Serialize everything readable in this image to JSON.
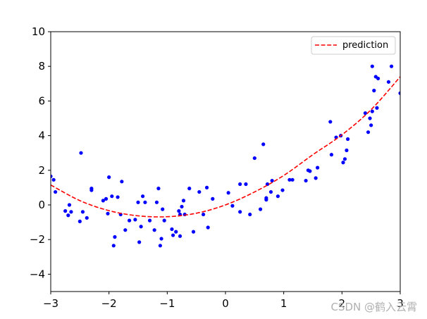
{
  "chart_data": {
    "type": "scatter",
    "xlim": [
      -3,
      3
    ],
    "ylim": [
      -5,
      10
    ],
    "xticks": [
      -3,
      -2,
      -1,
      0,
      1,
      2,
      3
    ],
    "yticks": [
      -4,
      -2,
      0,
      2,
      4,
      6,
      8,
      10
    ],
    "grid": false,
    "legend": {
      "position": "top-right",
      "entries": [
        "prediction"
      ]
    },
    "scatter_color": "#0000ff",
    "line_color": "#ff0000",
    "points": [
      [
        -3.0,
        1.65
      ],
      [
        -2.95,
        1.45
      ],
      [
        -2.92,
        0.75
      ],
      [
        -2.75,
        -0.35
      ],
      [
        -2.7,
        -0.6
      ],
      [
        -2.68,
        0.0
      ],
      [
        -2.65,
        -0.4
      ],
      [
        -2.5,
        -0.95
      ],
      [
        -2.48,
        3.0
      ],
      [
        -2.45,
        -0.4
      ],
      [
        -2.38,
        -0.75
      ],
      [
        -2.3,
        0.85
      ],
      [
        -2.3,
        0.95
      ],
      [
        -2.1,
        0.25
      ],
      [
        -2.05,
        0.35
      ],
      [
        -2.02,
        -0.5
      ],
      [
        -2.0,
        1.6
      ],
      [
        -1.95,
        0.5
      ],
      [
        -1.92,
        -2.35
      ],
      [
        -1.9,
        -1.85
      ],
      [
        -1.85,
        0.45
      ],
      [
        -1.8,
        -0.55
      ],
      [
        -1.78,
        1.35
      ],
      [
        -1.72,
        -1.45
      ],
      [
        -1.65,
        -0.9
      ],
      [
        -1.55,
        -0.85
      ],
      [
        -1.5,
        0.15
      ],
      [
        -1.48,
        -2.15
      ],
      [
        -1.45,
        -1.25
      ],
      [
        -1.42,
        0.5
      ],
      [
        -1.38,
        0.15
      ],
      [
        -1.3,
        -0.9
      ],
      [
        -1.22,
        -1.45
      ],
      [
        -1.18,
        0.15
      ],
      [
        -1.15,
        0.95
      ],
      [
        -1.12,
        -2.35
      ],
      [
        -1.1,
        -1.95
      ],
      [
        -1.08,
        -0.25
      ],
      [
        -1.05,
        -0.9
      ],
      [
        -0.92,
        -1.4
      ],
      [
        -0.9,
        -1.75
      ],
      [
        -0.85,
        -1.55
      ],
      [
        -0.8,
        -0.35
      ],
      [
        -0.78,
        -0.55
      ],
      [
        -0.78,
        -1.8
      ],
      [
        -0.75,
        -0.1
      ],
      [
        -0.72,
        0.25
      ],
      [
        -0.7,
        -0.55
      ],
      [
        -0.62,
        0.95
      ],
      [
        -0.55,
        -1.55
      ],
      [
        -0.45,
        0.75
      ],
      [
        -0.38,
        -0.55
      ],
      [
        -0.32,
        1.0
      ],
      [
        -0.3,
        -1.3
      ],
      [
        -0.22,
        0.35
      ],
      [
        0.05,
        0.7
      ],
      [
        0.12,
        -0.05
      ],
      [
        0.25,
        -0.4
      ],
      [
        0.25,
        1.2
      ],
      [
        0.35,
        1.2
      ],
      [
        0.42,
        -0.55
      ],
      [
        0.5,
        2.7
      ],
      [
        0.6,
        -0.25
      ],
      [
        0.65,
        3.5
      ],
      [
        0.7,
        0.4
      ],
      [
        0.7,
        0.3
      ],
      [
        0.72,
        1.2
      ],
      [
        0.78,
        0.75
      ],
      [
        0.8,
        1.4
      ],
      [
        0.9,
        0.5
      ],
      [
        0.98,
        0.85
      ],
      [
        1.1,
        1.45
      ],
      [
        1.15,
        1.45
      ],
      [
        1.38,
        1.4
      ],
      [
        1.42,
        2.0
      ],
      [
        1.45,
        1.95
      ],
      [
        1.55,
        1.55
      ],
      [
        1.58,
        2.15
      ],
      [
        1.8,
        4.8
      ],
      [
        1.82,
        2.9
      ],
      [
        1.9,
        3.9
      ],
      [
        1.98,
        4.0
      ],
      [
        2.02,
        2.45
      ],
      [
        2.05,
        2.65
      ],
      [
        2.08,
        3.15
      ],
      [
        2.1,
        3.8
      ],
      [
        2.4,
        5.3
      ],
      [
        2.45,
        4.2
      ],
      [
        2.48,
        5.0
      ],
      [
        2.5,
        4.6
      ],
      [
        2.52,
        8.0
      ],
      [
        2.52,
        5.4
      ],
      [
        2.55,
        6.6
      ],
      [
        2.58,
        7.4
      ],
      [
        2.6,
        5.6
      ],
      [
        2.62,
        7.3
      ],
      [
        2.8,
        7.1
      ],
      [
        2.85,
        8.0
      ],
      [
        3.0,
        6.45
      ]
    ],
    "series": [
      {
        "name": "prediction",
        "style": "dashed",
        "x": [
          -3.0,
          -2.5,
          -2.0,
          -1.5,
          -1.0,
          -0.5,
          0.0,
          0.5,
          1.0,
          1.5,
          2.0,
          2.5,
          3.0
        ],
        "y": [
          1.15,
          0.25,
          -0.33,
          -0.63,
          -0.68,
          -0.48,
          0.0,
          0.75,
          1.7,
          2.9,
          4.05,
          5.5,
          7.4
        ]
      }
    ]
  },
  "watermark": "CSDN @鹤入云霄"
}
